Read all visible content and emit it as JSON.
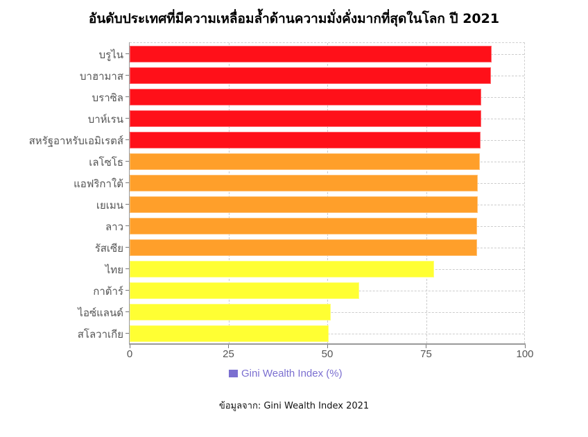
{
  "title": "อันดับประเทศที่มีความเหลื่อมล้ำด้านความมั่งคั่งมากที่สุดในโลก ปี 2021",
  "legend": {
    "label": "Gini Wealth Index (%)",
    "color": "#7b6fd0"
  },
  "source": "ข้อมูลจาก: Gini Wealth Index 2021",
  "colors": {
    "high": "#ff1019",
    "mid": "#ff9f2a",
    "low": "#ffff33"
  },
  "x_ticks": [
    "0",
    "25",
    "50",
    "75",
    "100"
  ],
  "chart_data": {
    "type": "bar",
    "orientation": "horizontal",
    "title": "อันดับประเทศที่มีความเหลื่อมล้ำด้านความมั่งคั่งมากที่สุดในโลก ปี 2021",
    "xlabel": "",
    "ylabel": "",
    "xlim": [
      0,
      100
    ],
    "x_ticks": [
      0,
      25,
      50,
      75,
      100
    ],
    "grid": true,
    "legend": [
      "Gini Wealth Index (%)"
    ],
    "legend_position": "bottom",
    "categories": [
      "บรูไน",
      "บาฮามาส",
      "บราซิล",
      "บาห์เรน",
      "สหรัฐอาหรับเอมิเรตส์",
      "เลโซโธ",
      "แอฟริกาใต้",
      "เยเมน",
      "ลาว",
      "รัสเซีย",
      "ไทย",
      "กาต้าร์",
      "ไอซ์แลนด์",
      "สโลวาเกีย"
    ],
    "series": [
      {
        "name": "Gini Wealth Index (%)",
        "values": [
          91.6,
          91.4,
          89.0,
          88.9,
          88.8,
          88.6,
          88.1,
          88.1,
          87.9,
          87.9,
          77.0,
          58.1,
          50.9,
          50.3
        ],
        "colors": [
          "#ff1019",
          "#ff1019",
          "#ff1019",
          "#ff1019",
          "#ff1019",
          "#ff9f2a",
          "#ff9f2a",
          "#ff9f2a",
          "#ff9f2a",
          "#ff9f2a",
          "#ffff33",
          "#ffff33",
          "#ffff33",
          "#ffff33"
        ]
      }
    ],
    "annotation": "ข้อมูลจาก: Gini Wealth Index 2021"
  }
}
